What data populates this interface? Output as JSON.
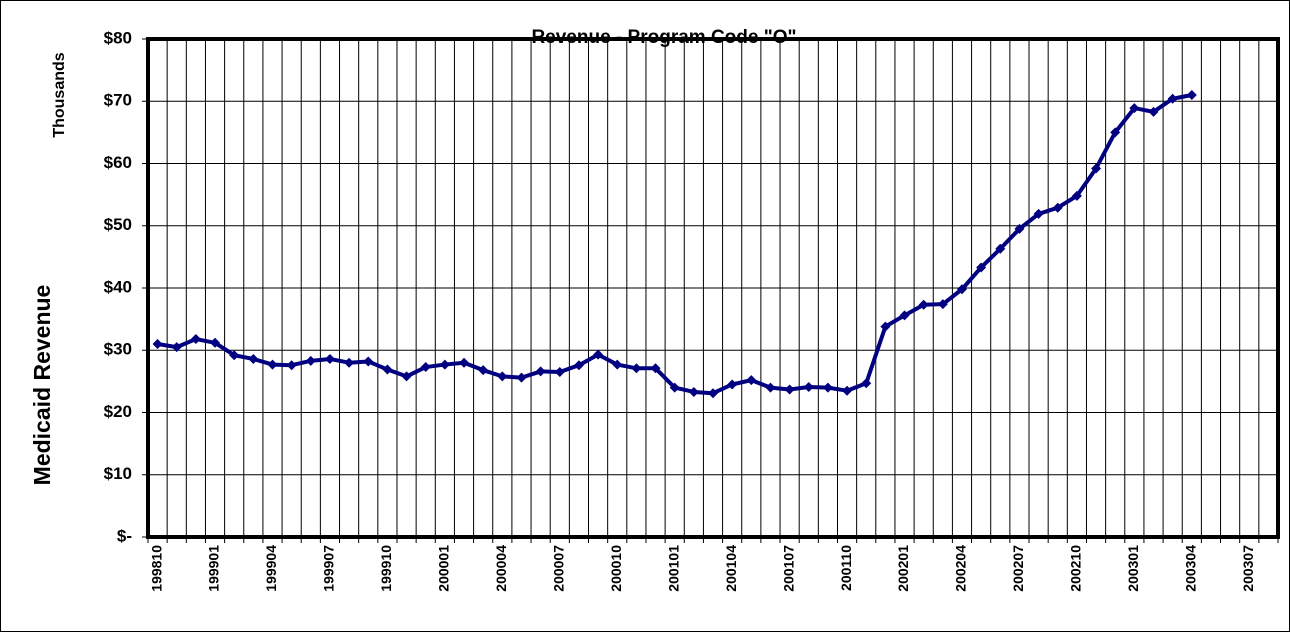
{
  "chart_data": {
    "type": "line",
    "title": "Revenue - Program Code \"O\"",
    "y_label": "Medicaid Revenue",
    "y_unit": "Thousands",
    "categories": [
      "199810",
      null,
      null,
      "199901",
      null,
      null,
      "199904",
      null,
      null,
      "199907",
      null,
      null,
      "199910",
      null,
      null,
      "200001",
      null,
      null,
      "200004",
      null,
      null,
      "200007",
      null,
      null,
      "200010",
      null,
      null,
      "200101",
      null,
      null,
      "200104",
      null,
      null,
      "200107",
      null,
      null,
      "200110",
      null,
      null,
      "200201",
      null,
      null,
      "200204",
      null,
      null,
      "200207",
      null,
      null,
      "200210",
      null,
      null,
      "200301",
      null,
      null,
      "200304",
      null,
      null,
      "200307",
      null
    ],
    "series": [
      {
        "name": "Medicaid Revenue",
        "color": "#000080",
        "values": [
          31.0,
          30.5,
          31.8,
          31.2,
          29.2,
          28.6,
          27.7,
          27.6,
          28.3,
          28.6,
          28.0,
          28.2,
          26.9,
          25.8,
          27.3,
          27.7,
          28.0,
          26.8,
          25.8,
          25.6,
          26.6,
          26.5,
          27.6,
          29.3,
          27.7,
          27.1,
          27.1,
          24.0,
          23.3,
          23.1,
          24.5,
          25.2,
          24.0,
          23.7,
          24.1,
          24.0,
          23.5,
          24.7,
          33.8,
          35.6,
          37.3,
          37.4,
          39.8,
          43.3,
          46.3,
          49.5,
          51.9,
          52.9,
          54.8,
          59.2,
          65.0,
          68.9,
          68.3,
          70.4,
          71.0,
          null,
          null,
          null,
          null
        ]
      }
    ],
    "ylim": [
      0,
      80
    ],
    "yticks": [
      {
        "value": 0,
        "label": "$-"
      },
      {
        "value": 10,
        "label": "$10"
      },
      {
        "value": 20,
        "label": "$20"
      },
      {
        "value": 30,
        "label": "$30"
      },
      {
        "value": 40,
        "label": "$40"
      },
      {
        "value": 50,
        "label": "$50"
      },
      {
        "value": 60,
        "label": "$60"
      },
      {
        "value": 70,
        "label": "$70"
      },
      {
        "value": 80,
        "label": "$80"
      }
    ],
    "grid": true
  }
}
